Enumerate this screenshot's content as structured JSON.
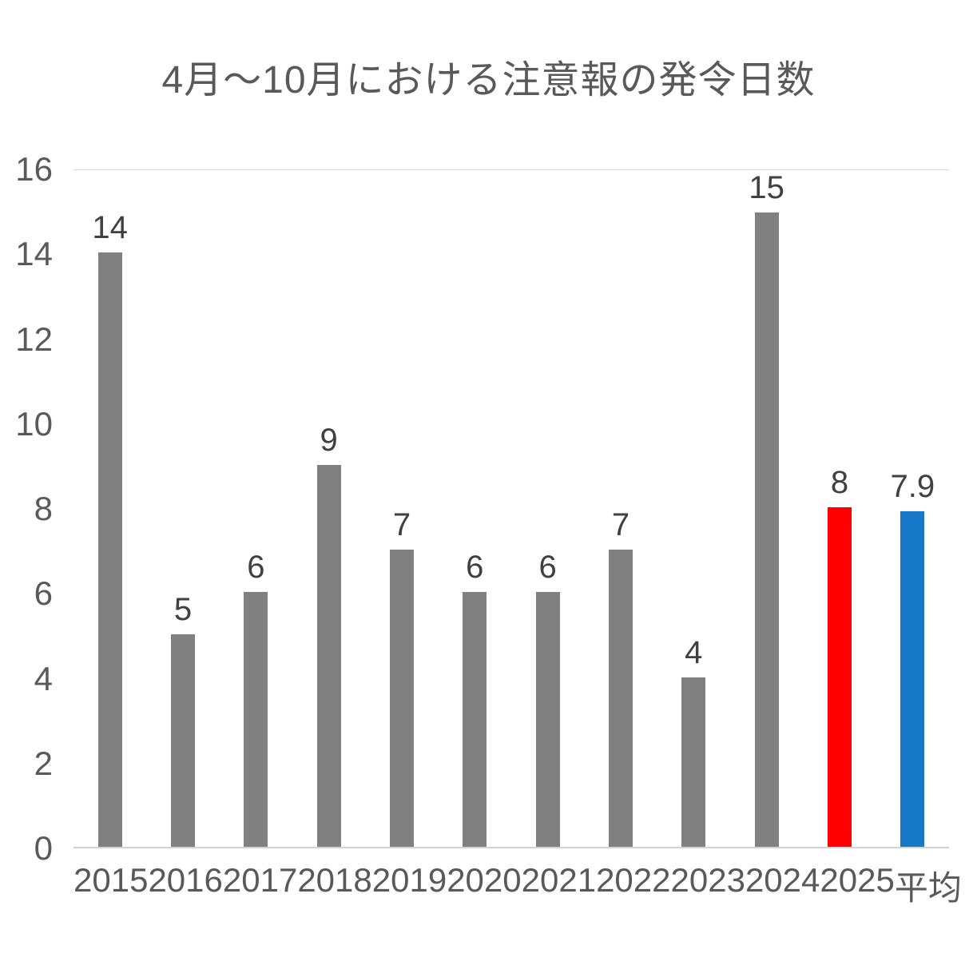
{
  "title": "4月～10月における注意報の発令日数",
  "colors": {
    "bar_default": "#808080",
    "bar_highlight_red": "#ff0000",
    "bar_highlight_blue": "#1878c8",
    "axis_text": "#595959",
    "value_label_text": "#404040",
    "gridline": "#d9d9d9"
  },
  "chart_data": {
    "type": "bar",
    "title": "4月～10月における注意報の発令日数",
    "categories": [
      "2015",
      "2016",
      "2017",
      "2018",
      "2019",
      "2020",
      "2021",
      "2022",
      "2023",
      "2024",
      "2025",
      "平均"
    ],
    "values": [
      14,
      5,
      6,
      9,
      7,
      6,
      6,
      7,
      4,
      15,
      8,
      7.9
    ],
    "data_labels": [
      "14",
      "5",
      "6",
      "9",
      "7",
      "6",
      "6",
      "7",
      "4",
      "15",
      "8",
      "7.9"
    ],
    "bar_colors": [
      "#808080",
      "#808080",
      "#808080",
      "#808080",
      "#808080",
      "#808080",
      "#808080",
      "#808080",
      "#808080",
      "#808080",
      "#ff0000",
      "#1878c8"
    ],
    "xlabel": "",
    "ylabel": "",
    "ylim": [
      0,
      16
    ],
    "yticks": [
      0,
      2,
      4,
      6,
      8,
      10,
      12,
      14,
      16
    ],
    "grid": "top line only",
    "legend": "none"
  }
}
